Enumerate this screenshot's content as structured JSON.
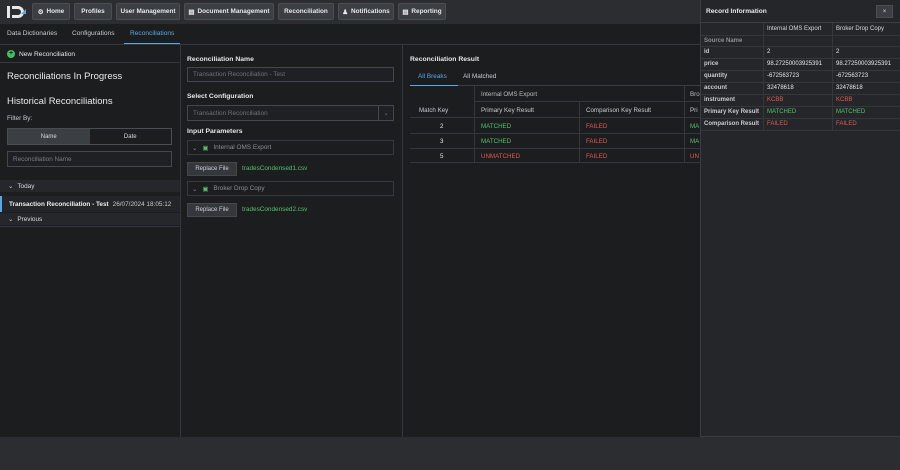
{
  "nav": {
    "buttons": [
      {
        "label": "Home",
        "icon": "gear-icon"
      },
      {
        "label": "Profiles",
        "icon": ""
      },
      {
        "label": "User Management",
        "icon": ""
      },
      {
        "label": "Document Management",
        "icon": "document-icon"
      },
      {
        "label": "Reconciliation",
        "icon": ""
      },
      {
        "label": "Notifications",
        "icon": "bell-icon"
      },
      {
        "label": "Reporting",
        "icon": "report-icon"
      }
    ]
  },
  "subnav": {
    "tabs": [
      "Data Dictionaries",
      "Configurations",
      "Reconciliations"
    ],
    "active": "Reconciliations"
  },
  "left": {
    "new_label": "New Reconciliation",
    "in_progress": "Reconciliations In Progress",
    "historical": "Historical Reconciliations",
    "filter_by": "Filter By:",
    "toggle": [
      "Name",
      "Date"
    ],
    "search_placeholder": "Reconciliation Name",
    "today": "Today",
    "item_name": "Transaction Reconciliation - Test",
    "item_date": "26/07/2024 18:05:12",
    "previous": "Previous"
  },
  "middle": {
    "name_label": "Reconciliation Name",
    "name_placeholder": "Transaction Reconciliation - Test",
    "config_label": "Select Configuration",
    "config_placeholder": "Transaction Reconciliation",
    "params_label": "Input Parameters",
    "param1": "Internal OMS Export",
    "param2": "Broker Drop Copy",
    "replace": "Replace File",
    "file1": "tradesCondensed1.csv",
    "file2": "tradesCondensed2.csv"
  },
  "result": {
    "title": "Reconciliation Result",
    "tabs": [
      "All Breaks",
      "All Matched"
    ],
    "group1": "Internal OMS Export",
    "group2": "Bro",
    "col_match": "Match Key",
    "col_pk": "Primary Key Result",
    "col_ck": "Comparison Key Result",
    "col_pk2": "Pri",
    "rows": [
      {
        "key": "2",
        "pk": "MATCHED",
        "ck": "FAILED",
        "pk2": "MA"
      },
      {
        "key": "3",
        "pk": "MATCHED",
        "ck": "FAILED",
        "pk2": "MA"
      },
      {
        "key": "5",
        "pk": "UNMATCHED",
        "ck": "FAILED",
        "pk2": "UN"
      }
    ]
  },
  "record": {
    "title": "Record Information",
    "close": "×",
    "col1": "Internal OMS Export",
    "col2": "Broker Drop Copy",
    "source_name": "Source Name",
    "rows": [
      {
        "k": "id",
        "a": "2",
        "b": "2",
        "color": ""
      },
      {
        "k": "price",
        "a": "98.27250003925391",
        "b": "98.27250003925391",
        "color": ""
      },
      {
        "k": "quantity",
        "a": "-672563723",
        "b": "-672563723",
        "color": ""
      },
      {
        "k": "account",
        "a": "32478618",
        "b": "32478618",
        "color": ""
      },
      {
        "k": "instrument",
        "a": "KCBB",
        "b": "KCBB",
        "color": "red"
      },
      {
        "k": "Primary Key Result",
        "a": "MATCHED",
        "b": "MATCHED",
        "color": "green"
      },
      {
        "k": "Comparison Result",
        "a": "FAILED",
        "b": "FAILED",
        "color": "red"
      }
    ]
  },
  "colors": {
    "accent": "#5aa9e6",
    "success": "#54c26b",
    "danger": "#e05a4f"
  }
}
